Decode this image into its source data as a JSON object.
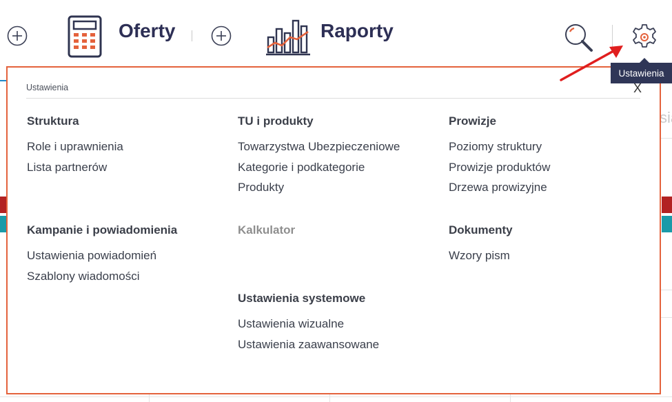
{
  "nav": {
    "offers_label": "Oferty",
    "reports_label": "Raporty"
  },
  "tooltip": {
    "text": "Ustawienia"
  },
  "panel": {
    "header": "Ustawienia",
    "close": "X",
    "sections": {
      "struktura": {
        "title": "Struktura",
        "items": [
          "Role i uprawnienia",
          "Lista partnerów"
        ]
      },
      "tu": {
        "title": "TU i produkty",
        "items": [
          "Towarzystwa Ubezpieczeniowe",
          "Kategorie i podkategorie",
          "Produkty"
        ]
      },
      "prowizje": {
        "title": "Prowizje",
        "items": [
          "Poziomy struktury",
          "Prowizje produktów",
          "Drzewa prowizyjne"
        ]
      },
      "kampanie": {
        "title": "Kampanie i powiadomienia",
        "items": [
          "Ustawienia powiadomień",
          "Szablony wiadomości"
        ]
      },
      "kalkulator": {
        "title": "Kalkulator",
        "items": []
      },
      "dokumenty": {
        "title": "Dokumenty",
        "items": [
          "Wzory pism"
        ]
      },
      "systemowe": {
        "title": "Ustawienia systemowe",
        "items": [
          "Ustawienia wizualne",
          "Ustawienia zaawansowane"
        ]
      }
    }
  },
  "background": {
    "fragment": "sia"
  },
  "colors": {
    "accent": "#e4623c",
    "nav_text": "#2d2f55",
    "tooltip_bg": "#2f3657"
  }
}
